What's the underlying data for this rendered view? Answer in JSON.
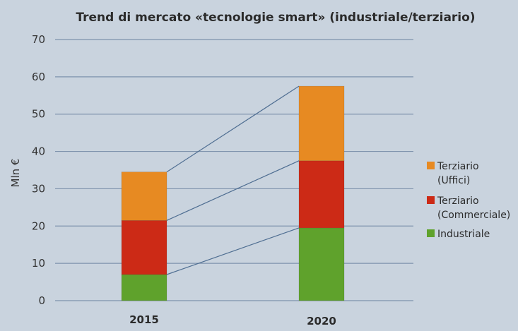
{
  "chart_data": {
    "type": "bar",
    "stacked": true,
    "title": "Trend di mercato «tecnologie smart» (industriale/terziario)",
    "xlabel": "",
    "ylabel": "Mln €",
    "ylim": [
      0,
      70
    ],
    "yticks": [
      0,
      10,
      20,
      30,
      40,
      50,
      60,
      70
    ],
    "grid": true,
    "legend_position": "right",
    "categories": [
      "2015",
      "2020"
    ],
    "series": [
      {
        "name": "Industriale",
        "color": "#5fa22c",
        "values": [
          7,
          19.5
        ]
      },
      {
        "name": "Terziario (Commerciale)",
        "color": "#cc2a16",
        "values": [
          14.5,
          18
        ]
      },
      {
        "name": "Terziario (Uffici)",
        "color": "#e78a22",
        "values": [
          13,
          20
        ]
      }
    ],
    "legend": [
      {
        "lines": [
          "Terziario",
          "(Uffici)"
        ],
        "color": "#e78a22"
      },
      {
        "lines": [
          "Terziario",
          "(Commerciale)"
        ],
        "color": "#cc2a16"
      },
      {
        "lines": [
          "Industriale"
        ],
        "color": "#5fa22c"
      }
    ]
  }
}
